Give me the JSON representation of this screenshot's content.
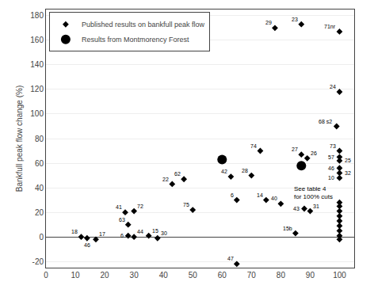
{
  "chart_data": {
    "type": "scatter",
    "ylabel": "Bankfull peak flow change (%)",
    "xlim": [
      0,
      105
    ],
    "ylim": [
      -25,
      185
    ],
    "xticks": [
      0,
      10,
      20,
      30,
      40,
      50,
      60,
      70,
      80,
      90,
      100
    ],
    "yticks": [
      -20,
      0,
      20,
      40,
      60,
      80,
      100,
      120,
      140,
      160,
      180
    ],
    "grid": "y",
    "legend": "upper left",
    "series": [
      {
        "name": "Published results on bankfull peak flow",
        "color": "#000000",
        "marker": "diamond",
        "x": [
          12,
          14,
          17,
          27,
          30,
          28,
          28,
          30,
          35,
          38,
          43,
          47,
          50,
          63,
          65,
          65,
          70,
          73,
          75,
          80,
          85,
          87,
          89,
          88,
          90,
          78,
          87,
          100,
          100,
          99,
          100,
          100,
          100,
          100,
          100,
          100,
          100,
          100,
          100,
          100,
          100,
          100,
          100,
          100,
          100
        ],
        "values": [
          0,
          -1,
          -2,
          20,
          21,
          10,
          1,
          0,
          1,
          -1,
          43,
          47,
          22,
          49,
          30,
          -22,
          50,
          70,
          30,
          27,
          3,
          67,
          64,
          23,
          21,
          170,
          173,
          167,
          118,
          90,
          70,
          65,
          62,
          56,
          52,
          48,
          28,
          25,
          21,
          17,
          13,
          9,
          5,
          1,
          -2
        ],
        "labels": [
          "18",
          "46",
          "17",
          "41",
          "72",
          "63",
          "6",
          "44",
          "15",
          "30",
          "22",
          "62",
          "75",
          "42",
          "6",
          "47",
          "28",
          "74",
          "14",
          "40",
          "15b",
          "27",
          "26",
          "43",
          "31",
          "29",
          "23",
          "71nr",
          "24",
          "68 s2",
          "73",
          "57",
          "25",
          "46",
          "32",
          "10",
          null,
          null,
          null,
          null,
          null,
          null,
          null,
          null,
          null
        ]
      },
      {
        "name": "Results from Montmorency Forest",
        "color": "#000000",
        "marker": "circle",
        "x": [
          60,
          87
        ],
        "values": [
          63,
          58
        ]
      }
    ],
    "annotations": [
      {
        "text": "See table 4\nfor 100% cuts",
        "x": 84,
        "y": 43
      }
    ]
  }
}
